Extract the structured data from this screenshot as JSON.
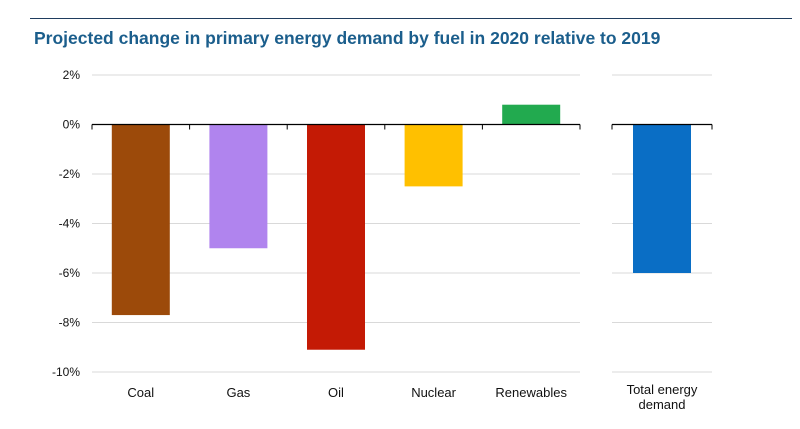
{
  "header": {
    "title": "Projected change in primary energy demand by fuel in 2020 relative to 2019"
  },
  "chart_data": [
    {
      "type": "bar",
      "categories": [
        "Coal",
        "Gas",
        "Oil",
        "Nuclear",
        "Renewables"
      ],
      "values": [
        -7.7,
        -5.0,
        -9.1,
        -2.5,
        0.8
      ],
      "colors": [
        "#9c4a0a",
        "#b084ee",
        "#c41a05",
        "#ffc000",
        "#22aa4f"
      ],
      "ylim": [
        -10,
        2
      ],
      "yticks": [
        "2%",
        "0%",
        "-2%",
        "-4%",
        "-6%",
        "-8%",
        "-10%"
      ],
      "ytick_values": [
        2,
        0,
        -2,
        -4,
        -6,
        -8,
        -10
      ],
      "grid": true
    },
    {
      "type": "bar",
      "categories": [
        [
          "Total energy",
          "demand"
        ]
      ],
      "values": [
        -6.0
      ],
      "colors": [
        "#0a6ec5"
      ],
      "ylim": [
        -10,
        2
      ],
      "grid": true
    }
  ]
}
